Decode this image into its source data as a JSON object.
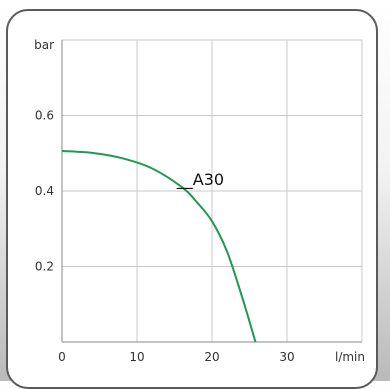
{
  "chart_data": {
    "type": "line",
    "ylabel": "bar",
    "xlabel": "l/min",
    "xlim": [
      0,
      40
    ],
    "ylim": [
      0,
      0.8
    ],
    "x_ticks": [
      0,
      10,
      20,
      30
    ],
    "x_tick_labels": [
      "0",
      "10",
      "20",
      "30"
    ],
    "y_ticks": [
      0.2,
      0.4,
      0.6
    ],
    "y_tick_labels": [
      "0.2",
      "0.4",
      "0.6"
    ],
    "grid": true,
    "series": [
      {
        "name": "A30",
        "color": "#1f9a4e",
        "x": [
          0,
          4,
          8,
          12,
          16,
          18,
          20,
          22,
          24,
          25.8
        ],
        "y": [
          0.506,
          0.501,
          0.487,
          0.46,
          0.41,
          0.37,
          0.32,
          0.24,
          0.12,
          0.0
        ]
      }
    ],
    "annotations": [
      {
        "text": "__A30",
        "x": 15.3,
        "y": 0.41
      }
    ]
  }
}
